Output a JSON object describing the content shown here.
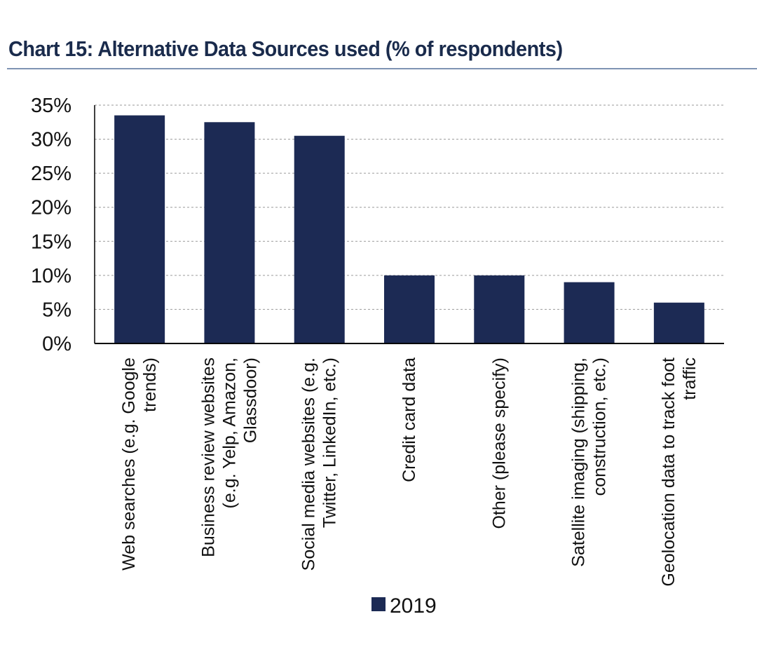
{
  "chart_data": {
    "type": "bar",
    "title": "Chart 15: Alternative Data Sources used (% of respondents)",
    "categories": [
      [
        "Web searches (e.g. Google",
        "trends)"
      ],
      [
        "Business review websites",
        "(e.g. Yelp, Amazon,",
        "Glassdoor)"
      ],
      [
        "Social media websites (e.g.",
        "Twitter, LinkedIn, etc.)"
      ],
      [
        "Credit card data"
      ],
      [
        "Other (please specify)"
      ],
      [
        "Satellite imaging (shipping,",
        "construction, etc.)"
      ],
      [
        "Geolocation data to track foot",
        "traffic"
      ]
    ],
    "series": [
      {
        "name": "2019",
        "color": "#1c2a54",
        "values": [
          33.5,
          32.5,
          30.5,
          10,
          10,
          9,
          6
        ]
      }
    ],
    "y_ticks": [
      "0%",
      "5%",
      "10%",
      "15%",
      "20%",
      "25%",
      "30%",
      "35%"
    ],
    "ylim": [
      0,
      35
    ],
    "grid": "dashed horizontal",
    "legend_position": "bottom-center"
  }
}
